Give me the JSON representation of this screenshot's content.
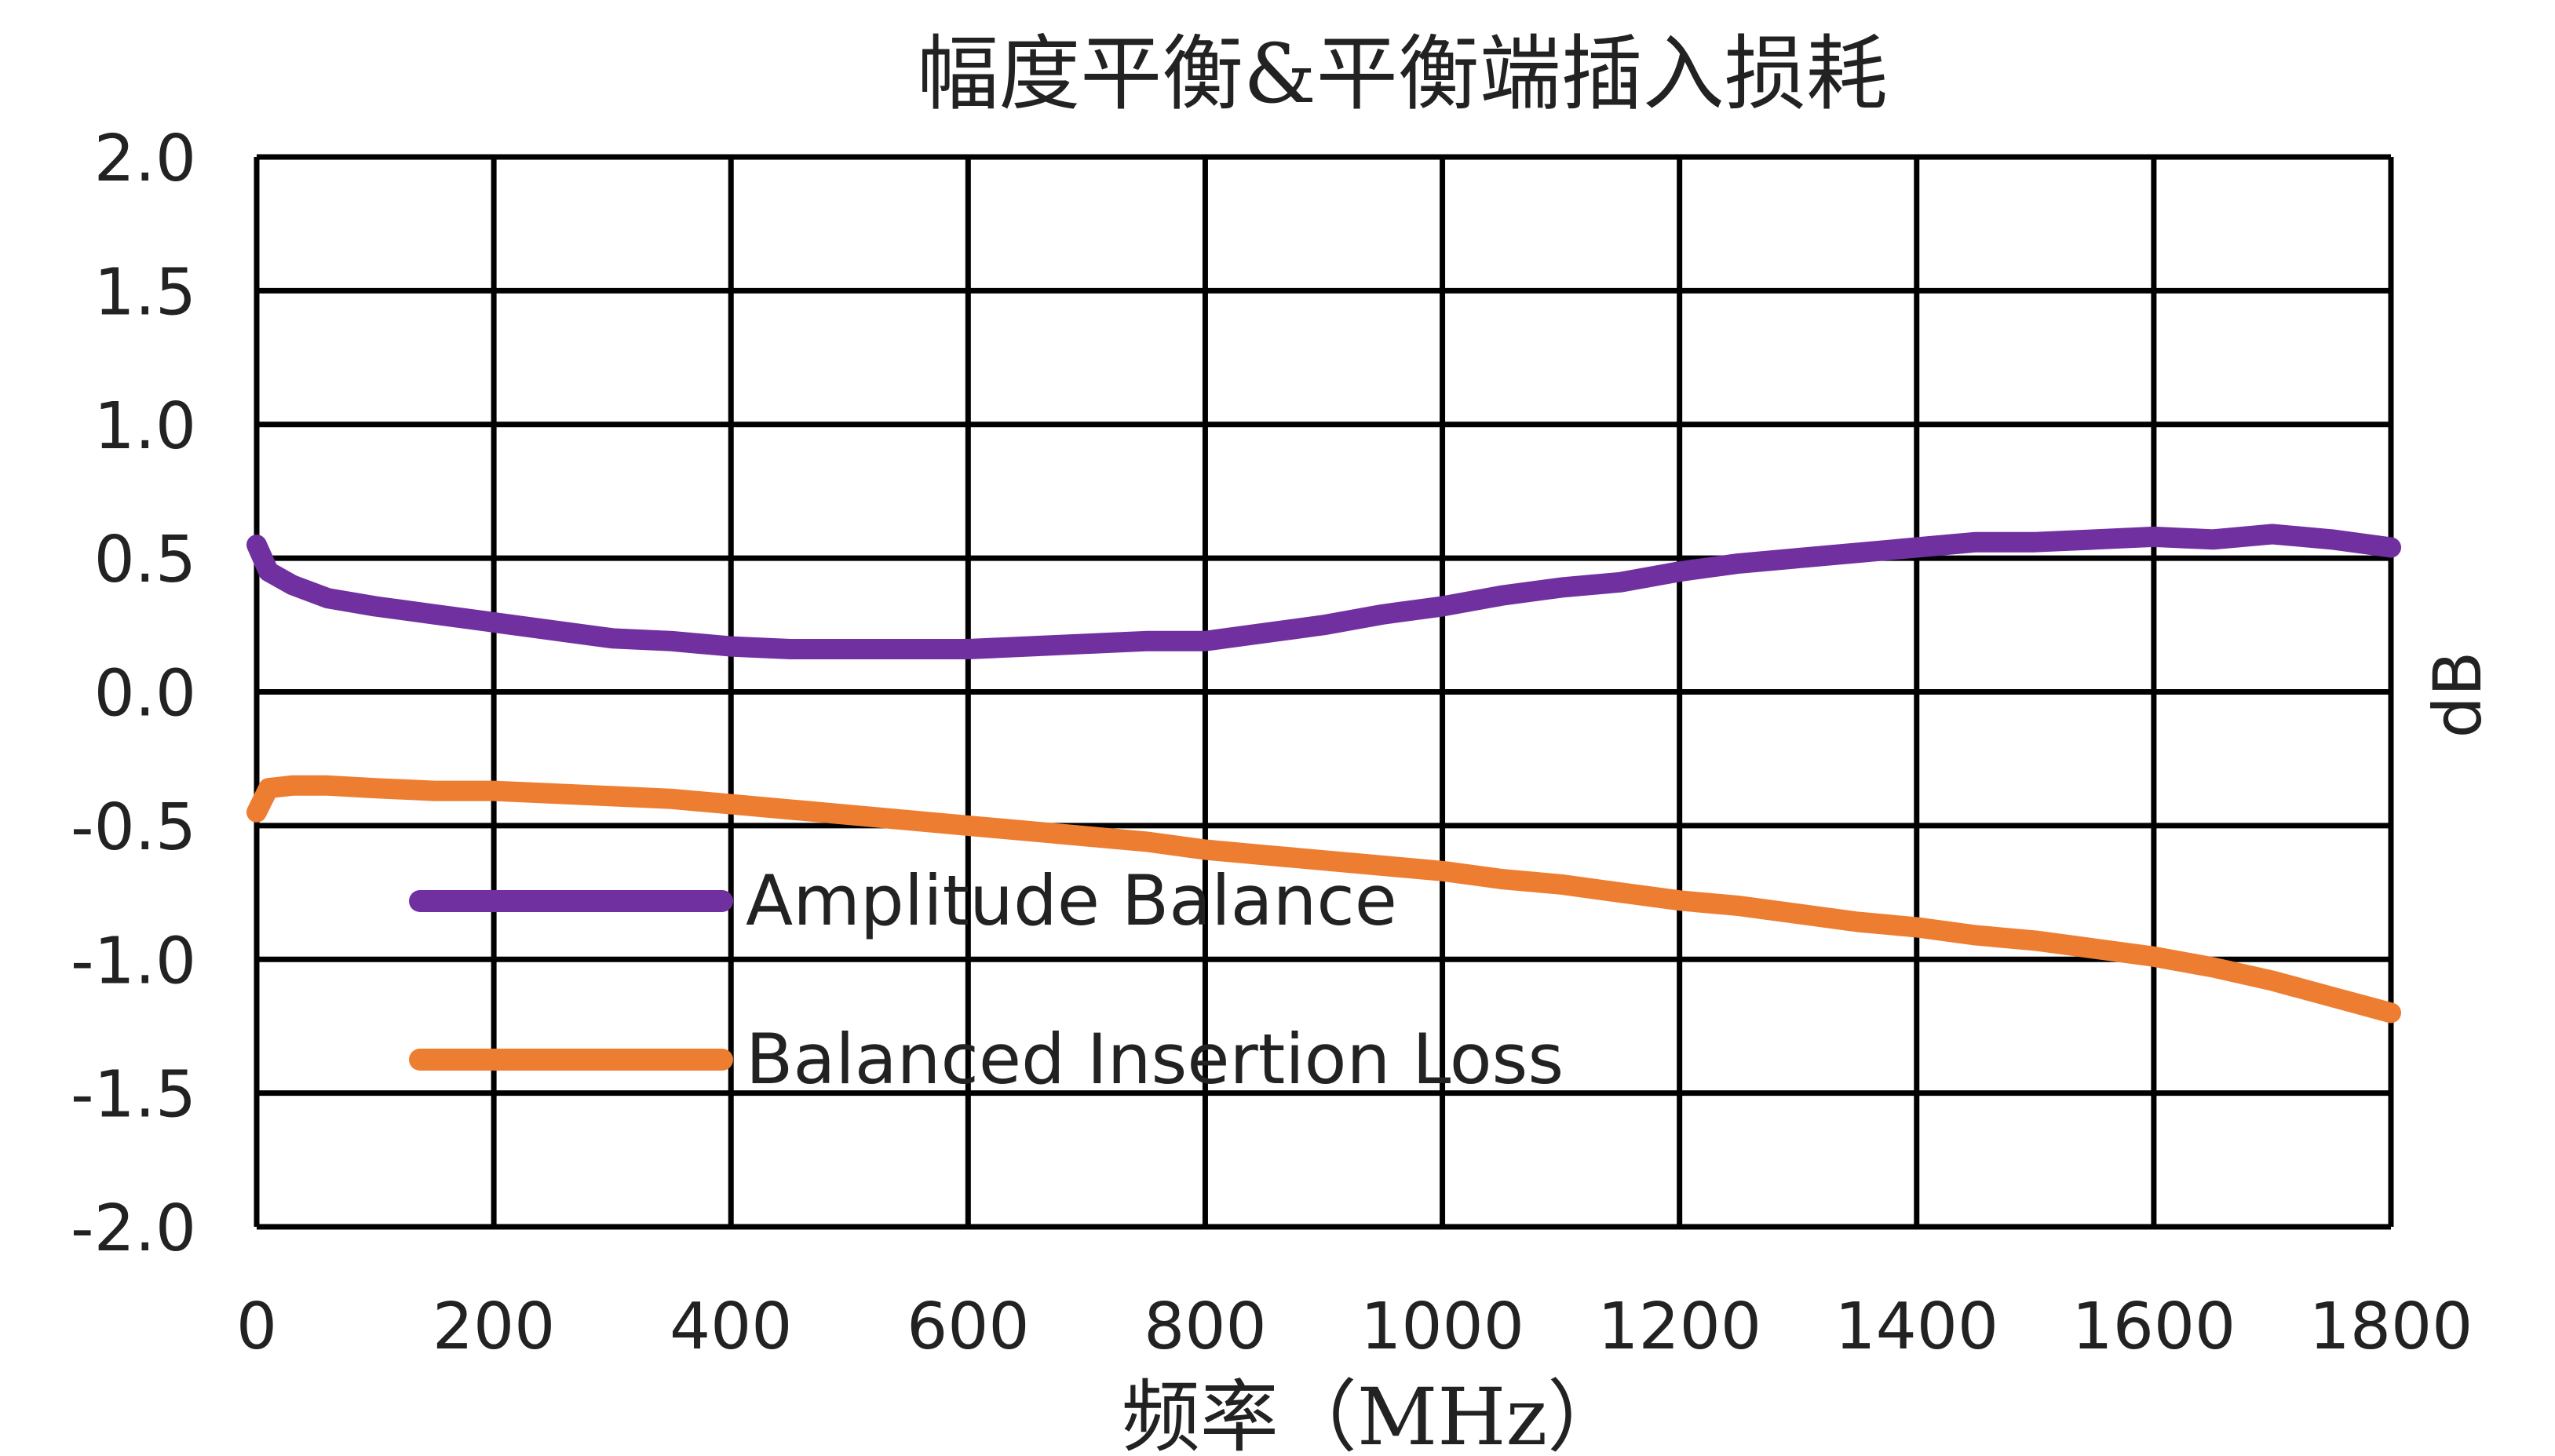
{
  "chart_data": {
    "type": "line",
    "title": "幅度平衡&平衡端插入损耗",
    "xlabel": "频率（MHz）",
    "ylabel": "dB",
    "xlim": [
      0,
      1800
    ],
    "ylim": [
      -2.0,
      2.0
    ],
    "x_ticks": [
      "0",
      "200",
      "400",
      "600",
      "800",
      "1000",
      "1200",
      "1400",
      "1600",
      "1800"
    ],
    "y_ticks": [
      "2.0",
      "1.5",
      "1.0",
      "0.5",
      "0.0",
      "-0.5",
      "-1.0",
      "-1.5",
      "-2.0"
    ],
    "grid": true,
    "legend_position": "bottom-left",
    "colors": {
      "amplitude_balance": "#7030A0",
      "balanced_insertion_loss": "#ED7D31",
      "grid": "#000000",
      "text": "#222222"
    },
    "series": [
      {
        "name": "Amplitude Balance",
        "color": "#7030A0",
        "x": [
          0,
          10,
          30,
          60,
          100,
          150,
          200,
          250,
          300,
          350,
          400,
          450,
          500,
          550,
          600,
          650,
          700,
          750,
          800,
          850,
          900,
          950,
          1000,
          1050,
          1100,
          1150,
          1200,
          1250,
          1300,
          1350,
          1400,
          1450,
          1500,
          1550,
          1600,
          1650,
          1700,
          1750,
          1800
        ],
        "y": [
          0.55,
          0.45,
          0.4,
          0.35,
          0.32,
          0.29,
          0.26,
          0.23,
          0.2,
          0.19,
          0.17,
          0.16,
          0.16,
          0.16,
          0.16,
          0.17,
          0.18,
          0.19,
          0.19,
          0.22,
          0.25,
          0.29,
          0.32,
          0.36,
          0.39,
          0.41,
          0.45,
          0.48,
          0.5,
          0.52,
          0.54,
          0.56,
          0.56,
          0.57,
          0.58,
          0.57,
          0.59,
          0.57,
          0.54
        ]
      },
      {
        "name": "Balanced Insertion Loss",
        "color": "#ED7D31",
        "x": [
          0,
          10,
          30,
          60,
          100,
          150,
          200,
          250,
          300,
          350,
          400,
          450,
          500,
          550,
          600,
          650,
          700,
          750,
          800,
          850,
          900,
          950,
          1000,
          1050,
          1100,
          1150,
          1200,
          1250,
          1300,
          1350,
          1400,
          1450,
          1500,
          1550,
          1600,
          1650,
          1700,
          1750,
          1800
        ],
        "y": [
          -0.45,
          -0.36,
          -0.35,
          -0.35,
          -0.36,
          -0.37,
          -0.37,
          -0.38,
          -0.39,
          -0.4,
          -0.42,
          -0.44,
          -0.46,
          -0.48,
          -0.5,
          -0.52,
          -0.54,
          -0.56,
          -0.59,
          -0.61,
          -0.63,
          -0.65,
          -0.67,
          -0.7,
          -0.72,
          -0.75,
          -0.78,
          -0.8,
          -0.83,
          -0.86,
          -0.88,
          -0.91,
          -0.93,
          -0.96,
          -0.99,
          -1.03,
          -1.08,
          -1.14,
          -1.2
        ]
      }
    ]
  }
}
